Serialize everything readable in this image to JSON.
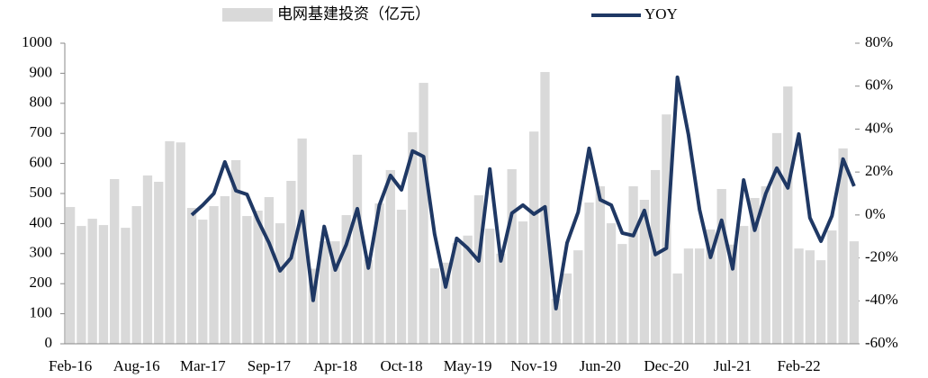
{
  "chart_data": {
    "type": "bar-line",
    "categories": [
      "Feb-16",
      null,
      null,
      null,
      null,
      null,
      "Aug-16",
      null,
      null,
      null,
      null,
      null,
      "Mar-17",
      null,
      null,
      null,
      null,
      null,
      "Sep-17",
      null,
      null,
      null,
      null,
      null,
      "Apr-18",
      null,
      null,
      null,
      null,
      null,
      "Oct-18",
      null,
      null,
      null,
      null,
      null,
      "May-19",
      null,
      null,
      null,
      null,
      null,
      "Nov-19",
      null,
      null,
      null,
      null,
      null,
      "Jun-20",
      null,
      null,
      null,
      null,
      null,
      "Dec-20",
      null,
      null,
      null,
      null,
      null,
      "Jul-21",
      null,
      null,
      null,
      null,
      null,
      "Feb-22",
      null,
      null,
      null,
      null,
      null
    ],
    "series": [
      {
        "name": "电网基建投资（亿元）",
        "type": "bar",
        "color": "#d9d9d9",
        "values": [
          455,
          392,
          416,
          395,
          548,
          386,
          458,
          560,
          539,
          674,
          670,
          452,
          413,
          458,
          491,
          611,
          425,
          443,
          488,
          401,
          542,
          683,
          250,
          341,
          341,
          428,
          629,
          280,
          467,
          578,
          446,
          704,
          868,
          251,
          270,
          335,
          360,
          494,
          383,
          300,
          581,
          407,
          706,
          904,
          150,
          234,
          311,
          470,
          524,
          401,
          332,
          524,
          479,
          578,
          763,
          234,
          317,
          317,
          380,
          515,
          330,
          392,
          485,
          524,
          701,
          856,
          317,
          311,
          278,
          377,
          650,
          341
        ]
      },
      {
        "name": "YOY",
        "type": "line",
        "axis": "y2",
        "color": "#1f3864",
        "values": [
          null,
          null,
          null,
          null,
          null,
          null,
          null,
          null,
          null,
          null,
          null,
          0,
          4.6,
          10,
          24.7,
          11.3,
          9.6,
          -2.5,
          -13,
          -26,
          -20,
          1.7,
          -39.8,
          -5.4,
          -25.6,
          -13.8,
          2.9,
          -24.7,
          4.6,
          18.4,
          11.7,
          29.8,
          27.2,
          -8.8,
          -33.5,
          -10.9,
          -15.5,
          -21.4,
          21.4,
          -21.4,
          0.8,
          4.6,
          0.4,
          3.8,
          -43.6,
          -13,
          1.3,
          31,
          7.1,
          4.6,
          -8.4,
          -9.6,
          2.1,
          -18.4,
          -15.5,
          64.1,
          37.3,
          2.5,
          -19.7,
          -2.5,
          -25.1,
          16.3,
          -7.1,
          10,
          21.8,
          12.6,
          37.7,
          -1.3,
          -12.2,
          -0.4,
          26,
          13.4
        ]
      }
    ],
    "ylim": [
      0,
      1000
    ],
    "yticks": [
      0,
      100,
      200,
      300,
      400,
      500,
      600,
      700,
      800,
      900,
      1000
    ],
    "y2lim": [
      -60,
      80
    ],
    "y2ticks": [
      {
        "value": -60,
        "label": "-60%"
      },
      {
        "value": -40,
        "label": "-40%"
      },
      {
        "value": -20,
        "label": "-20%"
      },
      {
        "value": 0,
        "label": "0%"
      },
      {
        "value": 20,
        "label": "20%"
      },
      {
        "value": 40,
        "label": "40%"
      },
      {
        "value": 60,
        "label": "60%"
      },
      {
        "value": 80,
        "label": "80%"
      }
    ],
    "legend": "top"
  }
}
